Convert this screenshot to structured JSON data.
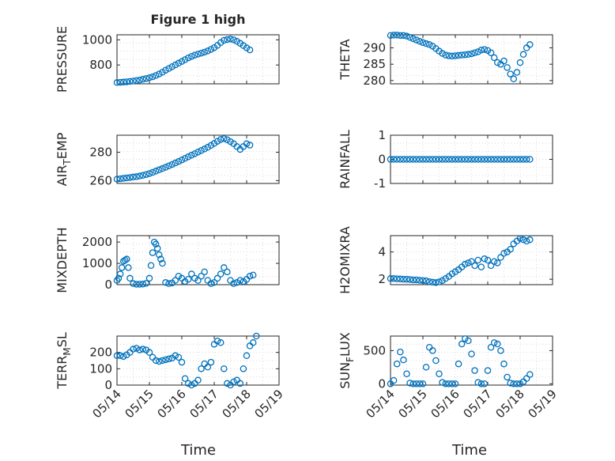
{
  "figure_title": "Figure 1 high",
  "x_axis_label": "Time",
  "colors": {
    "series": "#0072bd",
    "axes": "#262626",
    "grid": "#d9d9d9"
  },
  "chart_data": [
    {
      "type": "scatter",
      "ylabel": "PRESSURE",
      "title": "Figure 1 high",
      "xlim": [
        0,
        5
      ],
      "ylim": [
        650,
        1040
      ],
      "yticks": [
        800,
        1000
      ],
      "xticks": [],
      "grid": true,
      "x": [
        0.0,
        0.1,
        0.2,
        0.3,
        0.4,
        0.5,
        0.6,
        0.7,
        0.8,
        0.9,
        1.0,
        1.1,
        1.2,
        1.3,
        1.4,
        1.5,
        1.6,
        1.7,
        1.8,
        1.9,
        2.0,
        2.1,
        2.2,
        2.3,
        2.4,
        2.5,
        2.6,
        2.7,
        2.8,
        2.9,
        3.0,
        3.1,
        3.2,
        3.3,
        3.4,
        3.5,
        3.6,
        3.7,
        3.8,
        3.9,
        4.0,
        4.1
      ],
      "y": [
        660,
        662,
        664,
        666,
        669,
        672,
        676,
        680,
        686,
        692,
        699,
        706,
        716,
        728,
        742,
        758,
        772,
        786,
        800,
        814,
        828,
        842,
        856,
        868,
        878,
        886,
        894,
        902,
        912,
        924,
        938,
        956,
        978,
        996,
        1002,
        1006,
        1000,
        988,
        972,
        954,
        936,
        920
      ]
    },
    {
      "type": "scatter",
      "ylabel": "THETA",
      "xlim": [
        0,
        5
      ],
      "ylim": [
        279,
        294
      ],
      "yticks": [
        280,
        285,
        290
      ],
      "xticks": [],
      "grid": true,
      "x": [
        0.0,
        0.1,
        0.2,
        0.3,
        0.4,
        0.5,
        0.6,
        0.7,
        0.8,
        0.9,
        1.0,
        1.1,
        1.2,
        1.3,
        1.4,
        1.5,
        1.6,
        1.7,
        1.8,
        1.9,
        2.0,
        2.1,
        2.2,
        2.3,
        2.4,
        2.5,
        2.6,
        2.7,
        2.8,
        2.9,
        3.0,
        3.1,
        3.2,
        3.3,
        3.4,
        3.5,
        3.6,
        3.7,
        3.8,
        3.9,
        4.0,
        4.1,
        4.2,
        4.3
      ],
      "y": [
        293.8,
        293.9,
        293.9,
        293.8,
        293.8,
        293.6,
        293.2,
        292.8,
        292.4,
        292.0,
        291.6,
        291.3,
        291.0,
        290.5,
        289.8,
        289.0,
        288.3,
        287.8,
        287.6,
        287.5,
        287.6,
        287.7,
        287.8,
        287.9,
        288.0,
        288.2,
        288.5,
        288.8,
        289.3,
        289.5,
        289.2,
        288.5,
        287.0,
        285.5,
        285.0,
        286.0,
        284.0,
        282.0,
        280.5,
        282.5,
        285.5,
        288.0,
        290.0,
        291.0
      ]
    },
    {
      "type": "scatter",
      "ylabel": "AIR_TEMP",
      "ylabel_main": "AIR",
      "ylabel_sub": "T",
      "ylabel_rest": "EMP",
      "xlim": [
        0,
        5
      ],
      "ylim": [
        258,
        292
      ],
      "yticks": [
        260,
        280
      ],
      "xticks": [],
      "grid": true,
      "x": [
        0.0,
        0.1,
        0.2,
        0.3,
        0.4,
        0.5,
        0.6,
        0.7,
        0.8,
        0.9,
        1.0,
        1.1,
        1.2,
        1.3,
        1.4,
        1.5,
        1.6,
        1.7,
        1.8,
        1.9,
        2.0,
        2.1,
        2.2,
        2.3,
        2.4,
        2.5,
        2.6,
        2.7,
        2.8,
        2.9,
        3.0,
        3.1,
        3.2,
        3.3,
        3.4,
        3.5,
        3.6,
        3.7,
        3.8,
        3.9,
        4.0,
        4.1
      ],
      "y": [
        261.0,
        261.3,
        261.6,
        261.9,
        262.2,
        262.5,
        262.8,
        263.2,
        263.7,
        264.3,
        265.0,
        265.8,
        266.7,
        267.6,
        268.5,
        269.4,
        270.4,
        271.4,
        272.4,
        273.5,
        274.6,
        275.7,
        276.8,
        277.9,
        279.0,
        280.1,
        281.2,
        282.3,
        283.5,
        284.8,
        286.2,
        287.7,
        289.0,
        289.6,
        288.8,
        287.5,
        286.0,
        284.0,
        282.0,
        284.0,
        286.0,
        285.0
      ]
    },
    {
      "type": "scatter",
      "ylabel": "RAINFALL",
      "xlim": [
        0,
        5
      ],
      "ylim": [
        -1,
        1
      ],
      "yticks": [
        -1,
        0,
        1
      ],
      "xticks": [],
      "grid": true,
      "x": [
        0.0,
        0.1,
        0.2,
        0.3,
        0.4,
        0.5,
        0.6,
        0.7,
        0.8,
        0.9,
        1.0,
        1.1,
        1.2,
        1.3,
        1.4,
        1.5,
        1.6,
        1.7,
        1.8,
        1.9,
        2.0,
        2.1,
        2.2,
        2.3,
        2.4,
        2.5,
        2.6,
        2.7,
        2.8,
        2.9,
        3.0,
        3.1,
        3.2,
        3.3,
        3.4,
        3.5,
        3.6,
        3.7,
        3.8,
        3.9,
        4.0,
        4.1,
        4.2,
        4.3
      ],
      "y": [
        0,
        0,
        0,
        0,
        0,
        0,
        0,
        0,
        0,
        0,
        0,
        0,
        0,
        0,
        0,
        0,
        0,
        0,
        0,
        0,
        0,
        0,
        0,
        0,
        0,
        0,
        0,
        0,
        0,
        0,
        0,
        0,
        0,
        0,
        0,
        0,
        0,
        0,
        0,
        0,
        0,
        0,
        0,
        0
      ]
    },
    {
      "type": "scatter",
      "ylabel": "MIXDEPTH",
      "xlim": [
        0,
        5
      ],
      "ylim": [
        0,
        2300
      ],
      "yticks": [
        0,
        1000,
        2000
      ],
      "xticks": [],
      "grid": true,
      "x": [
        0.0,
        0.05,
        0.1,
        0.15,
        0.2,
        0.25,
        0.3,
        0.35,
        0.4,
        0.5,
        0.6,
        0.7,
        0.8,
        0.9,
        1.0,
        1.05,
        1.1,
        1.15,
        1.2,
        1.25,
        1.3,
        1.35,
        1.4,
        1.5,
        1.6,
        1.7,
        1.8,
        1.9,
        2.0,
        2.1,
        2.2,
        2.3,
        2.4,
        2.5,
        2.6,
        2.7,
        2.8,
        2.9,
        3.0,
        3.1,
        3.2,
        3.3,
        3.4,
        3.5,
        3.6,
        3.7,
        3.8,
        3.9,
        4.0,
        4.1,
        4.2
      ],
      "y": [
        200,
        300,
        500,
        800,
        1100,
        1150,
        1200,
        800,
        300,
        50,
        20,
        20,
        30,
        60,
        300,
        900,
        1500,
        2000,
        1900,
        1700,
        1400,
        1200,
        1000,
        100,
        50,
        80,
        200,
        400,
        300,
        150,
        250,
        500,
        300,
        200,
        400,
        600,
        200,
        50,
        100,
        300,
        500,
        800,
        600,
        200,
        50,
        100,
        200,
        150,
        250,
        400,
        450
      ]
    },
    {
      "type": "scatter",
      "ylabel": "H2OMIXRA",
      "xlim": [
        0,
        5
      ],
      "ylim": [
        1.6,
        5.2
      ],
      "yticks": [
        2,
        4
      ],
      "xticks": [],
      "grid": true,
      "x": [
        0.0,
        0.1,
        0.2,
        0.3,
        0.4,
        0.5,
        0.6,
        0.7,
        0.8,
        0.9,
        1.0,
        1.1,
        1.2,
        1.3,
        1.4,
        1.5,
        1.6,
        1.7,
        1.8,
        1.9,
        2.0,
        2.1,
        2.2,
        2.3,
        2.4,
        2.5,
        2.6,
        2.7,
        2.8,
        2.9,
        3.0,
        3.1,
        3.2,
        3.3,
        3.4,
        3.5,
        3.6,
        3.7,
        3.8,
        3.9,
        4.0,
        4.1,
        4.2,
        4.3
      ],
      "y": [
        2.05,
        2.05,
        2.03,
        2.02,
        2.0,
        2.0,
        1.98,
        1.95,
        1.95,
        1.92,
        1.9,
        1.88,
        1.82,
        1.78,
        1.75,
        1.8,
        1.9,
        2.05,
        2.2,
        2.4,
        2.55,
        2.7,
        2.9,
        3.1,
        3.2,
        3.3,
        3.0,
        3.4,
        2.9,
        3.5,
        3.4,
        3.0,
        3.3,
        3.2,
        3.6,
        3.9,
        4.0,
        4.2,
        4.6,
        4.8,
        5.0,
        4.9,
        4.8,
        4.9
      ]
    },
    {
      "type": "scatter",
      "ylabel": "TERR_MSL",
      "ylabel_main": "TERR",
      "ylabel_sub": "M",
      "ylabel_rest": "SL",
      "xlim": [
        0,
        5
      ],
      "ylim": [
        0,
        300
      ],
      "yticks": [
        0,
        100,
        200
      ],
      "xticks": [
        "05/14",
        "05/15",
        "05/16",
        "05/17",
        "05/18",
        "05/19"
      ],
      "grid": true,
      "x": [
        0.0,
        0.1,
        0.2,
        0.3,
        0.4,
        0.5,
        0.6,
        0.7,
        0.8,
        0.9,
        1.0,
        1.1,
        1.2,
        1.3,
        1.4,
        1.5,
        1.6,
        1.7,
        1.8,
        1.9,
        2.0,
        2.1,
        2.2,
        2.3,
        2.4,
        2.5,
        2.6,
        2.7,
        2.8,
        2.9,
        3.0,
        3.1,
        3.2,
        3.3,
        3.4,
        3.5,
        3.6,
        3.7,
        3.8,
        3.9,
        4.0,
        4.1,
        4.2,
        4.3
      ],
      "y": [
        180,
        180,
        175,
        185,
        200,
        220,
        225,
        215,
        220,
        215,
        200,
        170,
        150,
        145,
        150,
        155,
        160,
        165,
        180,
        170,
        140,
        40,
        10,
        0,
        10,
        30,
        100,
        130,
        110,
        140,
        250,
        270,
        260,
        100,
        10,
        0,
        20,
        30,
        10,
        100,
        180,
        240,
        260,
        300
      ]
    },
    {
      "type": "scatter",
      "ylabel": "SUN_FLUX",
      "ylabel_main": "SUN",
      "ylabel_sub": "F",
      "ylabel_rest": "LUX",
      "xlim": [
        0,
        5
      ],
      "ylim": [
        -20,
        720
      ],
      "yticks": [
        0,
        500
      ],
      "xticks": [
        "05/14",
        "05/15",
        "05/16",
        "05/17",
        "05/18",
        "05/19"
      ],
      "grid": true,
      "x": [
        0.0,
        0.1,
        0.2,
        0.3,
        0.4,
        0.5,
        0.6,
        0.7,
        0.8,
        0.9,
        1.0,
        1.1,
        1.2,
        1.3,
        1.4,
        1.5,
        1.6,
        1.7,
        1.8,
        1.9,
        2.0,
        2.1,
        2.2,
        2.3,
        2.4,
        2.5,
        2.6,
        2.7,
        2.8,
        2.9,
        3.0,
        3.1,
        3.2,
        3.3,
        3.4,
        3.5,
        3.6,
        3.7,
        3.8,
        3.9,
        4.0,
        4.1,
        4.2,
        4.3
      ],
      "y": [
        0,
        50,
        300,
        480,
        360,
        150,
        10,
        0,
        0,
        0,
        0,
        250,
        550,
        500,
        350,
        150,
        20,
        0,
        0,
        0,
        0,
        300,
        600,
        680,
        650,
        450,
        200,
        20,
        0,
        0,
        200,
        550,
        620,
        600,
        500,
        300,
        100,
        10,
        0,
        0,
        0,
        30,
        80,
        140
      ]
    }
  ]
}
